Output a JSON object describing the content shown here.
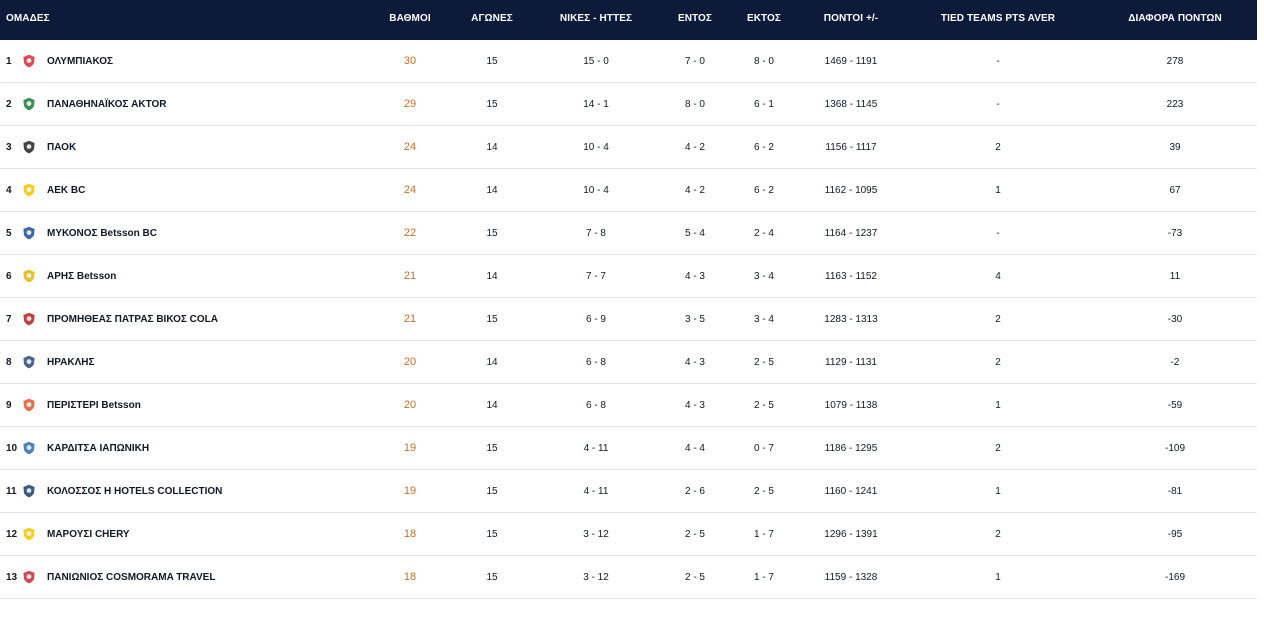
{
  "headers": {
    "team": "ΟΜΑΔΕΣ",
    "points": "ΒΑΘΜΟΙ",
    "games": "ΑΓΩΝΕΣ",
    "wins_losses": "ΝΙΚΕΣ - ΗΤΤΕΣ",
    "home": "ΕΝΤΟΣ",
    "away": "ΕΚΤΟΣ",
    "points_for_against": "ΠΟΝΤΟΙ +/-",
    "tied_teams": "TIED TEAMS PTS AVER",
    "point_diff": "ΔΙΑΦΟΡΑ ΠΟΝΤΩΝ"
  },
  "colors": {
    "header_bg": "#0e1a3a",
    "points_text": "#c2702a",
    "row_border": "#e3e5ea"
  },
  "rows": [
    {
      "pos": "1",
      "logo": "olympiacos-logo",
      "logo_color": "#d62a3a",
      "team": "ΟΛΥΜΠΙΑΚΟΣ",
      "points": "30",
      "games": "15",
      "wl": "15 - 0",
      "home": "7 - 0",
      "away": "8 - 0",
      "pts": "1469 - 1191",
      "tied": "-",
      "diff": "278"
    },
    {
      "pos": "2",
      "logo": "panathinaikos-logo",
      "logo_color": "#1f7a3a",
      "team": "ΠΑΝΑΘΗΝΑΪΚΟΣ AKTOR",
      "points": "29",
      "games": "15",
      "wl": "14 - 1",
      "home": "8 - 0",
      "away": "6 - 1",
      "pts": "1368 - 1145",
      "tied": "-",
      "diff": "223"
    },
    {
      "pos": "3",
      "logo": "paok-logo",
      "logo_color": "#222222",
      "team": "ΠΑΟΚ",
      "points": "24",
      "games": "14",
      "wl": "10 - 4",
      "home": "4 - 2",
      "away": "6 - 2",
      "pts": "1156 - 1117",
      "tied": "2",
      "diff": "39"
    },
    {
      "pos": "4",
      "logo": "aek-logo",
      "logo_color": "#f2c400",
      "team": "AEK BC",
      "points": "24",
      "games": "14",
      "wl": "10 - 4",
      "home": "4 - 2",
      "away": "6 - 2",
      "pts": "1162 - 1095",
      "tied": "1",
      "diff": "67"
    },
    {
      "pos": "5",
      "logo": "mykonos-logo",
      "logo_color": "#1d4f91",
      "team": "ΜΥΚΟΝΟΣ Betsson BC",
      "points": "22",
      "games": "15",
      "wl": "7 - 8",
      "home": "5 - 4",
      "away": "2 - 4",
      "pts": "1164 - 1237",
      "tied": "-",
      "diff": "-73"
    },
    {
      "pos": "6",
      "logo": "aris-logo",
      "logo_color": "#e3b400",
      "team": "ΑΡΗΣ Betsson",
      "points": "21",
      "games": "14",
      "wl": "7 - 7",
      "home": "4 - 3",
      "away": "3 - 4",
      "pts": "1163 - 1152",
      "tied": "4",
      "diff": "11"
    },
    {
      "pos": "7",
      "logo": "promitheas-logo",
      "logo_color": "#b32020",
      "team": "ΠΡΟΜΗΘΕΑΣ ΠΑΤΡΑΣ ΒΙΚΟΣ COLA",
      "points": "21",
      "games": "15",
      "wl": "6 - 9",
      "home": "3 - 5",
      "away": "3 - 4",
      "pts": "1283 - 1313",
      "tied": "2",
      "diff": "-30"
    },
    {
      "pos": "8",
      "logo": "iraklis-logo",
      "logo_color": "#2a4a7a",
      "team": "ΗΡΑΚΛΗΣ",
      "points": "20",
      "games": "14",
      "wl": "6 - 8",
      "home": "4 - 3",
      "away": "2 - 5",
      "pts": "1129 - 1131",
      "tied": "2",
      "diff": "-2"
    },
    {
      "pos": "9",
      "logo": "peristeri-logo",
      "logo_color": "#e0552a",
      "team": "ΠΕΡΙΣΤΕΡΙ Betsson",
      "points": "20",
      "games": "14",
      "wl": "6 - 8",
      "home": "4 - 3",
      "away": "2 - 5",
      "pts": "1079 - 1138",
      "tied": "1",
      "diff": "-59"
    },
    {
      "pos": "10",
      "logo": "karditsa-logo",
      "logo_color": "#2a6fb0",
      "team": "ΚΑΡΔΙΤΣΑ ΙΑΠΩΝΙΚΗ",
      "points": "19",
      "games": "15",
      "wl": "4 - 11",
      "home": "4 - 4",
      "away": "0 - 7",
      "pts": "1186 - 1295",
      "tied": "2",
      "diff": "-109"
    },
    {
      "pos": "11",
      "logo": "kolossos-logo",
      "logo_color": "#1a3a6a",
      "team": "ΚΟΛΟΣΣΟΣ H HOTELS COLLECTION",
      "points": "19",
      "games": "15",
      "wl": "4 - 11",
      "home": "2 - 6",
      "away": "2 - 5",
      "pts": "1160 - 1241",
      "tied": "1",
      "diff": "-81"
    },
    {
      "pos": "12",
      "logo": "marousi-logo",
      "logo_color": "#f0c800",
      "team": "ΜΑΡΟΥΣΙ CHERY",
      "points": "18",
      "games": "15",
      "wl": "3 - 12",
      "home": "2 - 5",
      "away": "1 - 7",
      "pts": "1296 - 1391",
      "tied": "2",
      "diff": "-95"
    },
    {
      "pos": "13",
      "logo": "panionios-logo",
      "logo_color": "#c8283a",
      "team": "ΠΑΝΙΩΝΙΟΣ COSMORAMA TRAVEL",
      "points": "18",
      "games": "15",
      "wl": "3 - 12",
      "home": "2 - 5",
      "away": "1 - 7",
      "pts": "1159 - 1328",
      "tied": "1",
      "diff": "-169"
    }
  ]
}
